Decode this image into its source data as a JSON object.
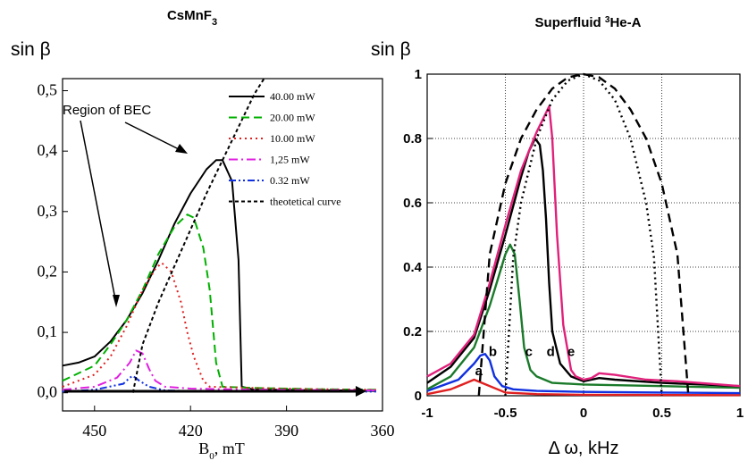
{
  "chart_data": [
    {
      "type": "line",
      "title": "CsMnF3",
      "ylabel": "sin β",
      "xlabel": "B0, mT",
      "xlim": [
        460,
        360
      ],
      "ylim": [
        -0.03,
        0.52
      ],
      "x_ticks": [
        "450",
        "420",
        "390",
        "360"
      ],
      "x_tick_values": [
        450,
        420,
        390,
        360
      ],
      "y_ticks": [
        "0,0",
        "0,1",
        "0,2",
        "0,3",
        "0,4",
        "0,5"
      ],
      "y_tick_values": [
        0,
        0.1,
        0.2,
        0.3,
        0.4,
        0.5
      ],
      "annotation": "Region of BEC",
      "legend_position": "top-right",
      "series": [
        {
          "name": "40.00 mW",
          "color": "#000000",
          "dash": "solid",
          "x": [
            460,
            455,
            450,
            445,
            440,
            435,
            430,
            425,
            420,
            415,
            412,
            410,
            407,
            405,
            404,
            400,
            390,
            380,
            370,
            362
          ],
          "y": [
            0.045,
            0.05,
            0.06,
            0.085,
            0.12,
            0.165,
            0.22,
            0.28,
            0.33,
            0.37,
            0.385,
            0.385,
            0.35,
            0.22,
            0.01,
            0.005,
            0.005,
            0.004,
            0.004,
            0.003
          ]
        },
        {
          "name": "20.00 mW",
          "color": "#00b000",
          "dash": "dashed",
          "x": [
            460,
            450,
            445,
            440,
            435,
            430,
            425,
            421,
            419,
            416,
            414,
            412,
            410,
            400,
            380,
            362
          ],
          "y": [
            0.02,
            0.045,
            0.08,
            0.12,
            0.17,
            0.23,
            0.275,
            0.295,
            0.29,
            0.24,
            0.17,
            0.05,
            0.01,
            0.008,
            0.006,
            0.005
          ]
        },
        {
          "name": "10.00 mW",
          "color": "#e02020",
          "dash": "dotted",
          "x": [
            460,
            450,
            445,
            440,
            435,
            431,
            429,
            426,
            423,
            421,
            419,
            416,
            414,
            400,
            380,
            362
          ],
          "y": [
            0.01,
            0.03,
            0.06,
            0.11,
            0.17,
            0.205,
            0.215,
            0.2,
            0.15,
            0.1,
            0.06,
            0.02,
            0.01,
            0.008,
            0.006,
            0.005
          ]
        },
        {
          "name": "1,25 mW",
          "color": "#e020e0",
          "dash": "dashdot",
          "x": [
            460,
            450,
            443,
            439,
            437,
            435,
            433,
            431,
            428,
            420,
            400,
            362
          ],
          "y": [
            0.005,
            0.01,
            0.025,
            0.05,
            0.07,
            0.065,
            0.04,
            0.02,
            0.01,
            0.007,
            0.005,
            0.004
          ]
        },
        {
          "name": "0.32 mW",
          "color": "#1030e0",
          "dash": "dashdotdot",
          "x": [
            460,
            450,
            441,
            439,
            438,
            436,
            433,
            428,
            420,
            362
          ],
          "y": [
            0.002,
            0.005,
            0.015,
            0.025,
            0.028,
            0.02,
            0.01,
            0.004,
            0.003,
            0.002
          ]
        },
        {
          "name": "theotetical curve",
          "color": "#000000",
          "dash": "shortdash",
          "x": [
            438,
            435,
            430,
            425,
            420,
            415,
            410,
            405,
            400,
            397
          ],
          "y": [
            0.0,
            0.08,
            0.15,
            0.21,
            0.27,
            0.33,
            0.385,
            0.44,
            0.495,
            0.52
          ]
        }
      ]
    },
    {
      "type": "line",
      "title": "Superfluid 3He-A",
      "ylabel": "sin β",
      "xlabel": "Δ ω, kHz",
      "xlim": [
        -1,
        1
      ],
      "ylim": [
        0,
        1
      ],
      "grid": true,
      "x_ticks": [
        "-1",
        "-0.5",
        "0",
        "0.5",
        "1"
      ],
      "x_tick_values": [
        -1,
        -0.5,
        0,
        0.5,
        1
      ],
      "y_ticks": [
        "0",
        "0.2",
        "0.4",
        "0.6",
        "0.8",
        "1"
      ],
      "y_tick_values": [
        0,
        0.2,
        0.4,
        0.6,
        0.8,
        1
      ],
      "point_labels": [
        {
          "text": "a",
          "x": -0.67,
          "y": 0.08
        },
        {
          "text": "b",
          "x": -0.58,
          "y": 0.14
        },
        {
          "text": "c",
          "x": -0.35,
          "y": 0.14
        },
        {
          "text": "d",
          "x": -0.21,
          "y": 0.14
        },
        {
          "text": "e",
          "x": -0.08,
          "y": 0.14
        }
      ],
      "series": [
        {
          "color": "#e02020",
          "dash": "solid",
          "x": [
            -1,
            -0.85,
            -0.75,
            -0.7,
            -0.65,
            -0.55,
            -0.5,
            -0.3,
            0,
            1
          ],
          "y": [
            0.005,
            0.02,
            0.04,
            0.05,
            0.04,
            0.02,
            0.01,
            0.005,
            0.003,
            0.002
          ]
        },
        {
          "color": "#1030e0",
          "dash": "solid",
          "x": [
            -1,
            -0.8,
            -0.7,
            -0.66,
            -0.63,
            -0.6,
            -0.57,
            -0.52,
            -0.45,
            -0.3,
            0,
            0.5,
            1
          ],
          "y": [
            0.015,
            0.05,
            0.1,
            0.125,
            0.13,
            0.11,
            0.06,
            0.03,
            0.02,
            0.015,
            0.012,
            0.01,
            0.008
          ]
        },
        {
          "color": "#1a7a2a",
          "dash": "solid",
          "x": [
            -1,
            -0.85,
            -0.7,
            -0.6,
            -0.55,
            -0.5,
            -0.47,
            -0.44,
            -0.41,
            -0.38,
            -0.34,
            -0.3,
            -0.2,
            0,
            0.5,
            1
          ],
          "y": [
            0.02,
            0.06,
            0.15,
            0.28,
            0.36,
            0.44,
            0.47,
            0.44,
            0.3,
            0.15,
            0.08,
            0.06,
            0.04,
            0.035,
            0.03,
            0.025
          ]
        },
        {
          "color": "#000000",
          "dash": "solid",
          "x": [
            -1,
            -0.85,
            -0.7,
            -0.6,
            -0.5,
            -0.45,
            -0.4,
            -0.35,
            -0.31,
            -0.28,
            -0.26,
            -0.24,
            -0.22,
            -0.2,
            -0.15,
            -0.08,
            0,
            0.05,
            0.1,
            0.2,
            0.5,
            1
          ],
          "y": [
            0.04,
            0.09,
            0.18,
            0.33,
            0.5,
            0.59,
            0.68,
            0.76,
            0.8,
            0.78,
            0.7,
            0.55,
            0.35,
            0.2,
            0.1,
            0.06,
            0.045,
            0.05,
            0.055,
            0.05,
            0.04,
            0.03
          ]
        },
        {
          "color": "#e0207a",
          "dash": "solid",
          "x": [
            -1,
            -0.85,
            -0.7,
            -0.6,
            -0.5,
            -0.4,
            -0.3,
            -0.25,
            -0.22,
            -0.2,
            -0.17,
            -0.13,
            -0.08,
            -0.05,
            0,
            0.05,
            0.1,
            0.2,
            0.4,
            0.6,
            1
          ],
          "y": [
            0.06,
            0.1,
            0.19,
            0.35,
            0.53,
            0.7,
            0.82,
            0.87,
            0.9,
            0.8,
            0.5,
            0.22,
            0.08,
            0.06,
            0.05,
            0.055,
            0.07,
            0.065,
            0.05,
            0.045,
            0.03
          ]
        },
        {
          "color": "#000000",
          "dash": "longdash",
          "x": [
            -0.67,
            -0.6,
            -0.5,
            -0.4,
            -0.3,
            -0.2,
            -0.1,
            0,
            0.1,
            0.2,
            0.3,
            0.4,
            0.5,
            0.6,
            0.67
          ],
          "y": [
            0.0,
            0.44,
            0.66,
            0.8,
            0.89,
            0.955,
            0.99,
            1.0,
            0.99,
            0.955,
            0.89,
            0.8,
            0.66,
            0.44,
            0.0
          ]
        },
        {
          "color": "#000000",
          "dash": "dotted",
          "x": [
            -0.5,
            -0.45,
            -0.4,
            -0.3,
            -0.2,
            -0.1,
            0,
            0.1,
            0.2,
            0.3,
            0.4,
            0.45,
            0.5
          ],
          "y": [
            0.0,
            0.43,
            0.6,
            0.8,
            0.92,
            0.98,
            1.0,
            0.98,
            0.92,
            0.8,
            0.6,
            0.43,
            0.0
          ]
        }
      ]
    }
  ]
}
